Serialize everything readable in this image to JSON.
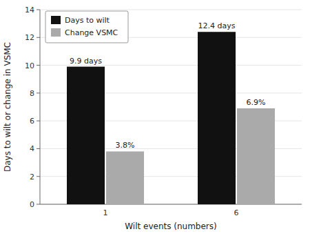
{
  "chart_data": {
    "type": "bar",
    "xlabel": "Wilt events (numbers)",
    "ylabel": "Days to wilt or change in VSMC",
    "categories": [
      "1",
      "6"
    ],
    "series": [
      {
        "name": "Days to wilt",
        "color": "#111111",
        "values": [
          9.9,
          12.4
        ],
        "value_labels": [
          "9.9 days",
          "12.4 days"
        ]
      },
      {
        "name": "Change VSMC",
        "color": "#aaaaaa",
        "values": [
          3.8,
          6.9
        ],
        "value_labels": [
          "3.8%",
          "6.9%"
        ]
      }
    ],
    "ylim": [
      0,
      14
    ],
    "yticks": [
      0,
      2,
      4,
      6,
      8,
      10,
      12,
      14
    ],
    "legend": "upper left",
    "data_labels": true
  }
}
